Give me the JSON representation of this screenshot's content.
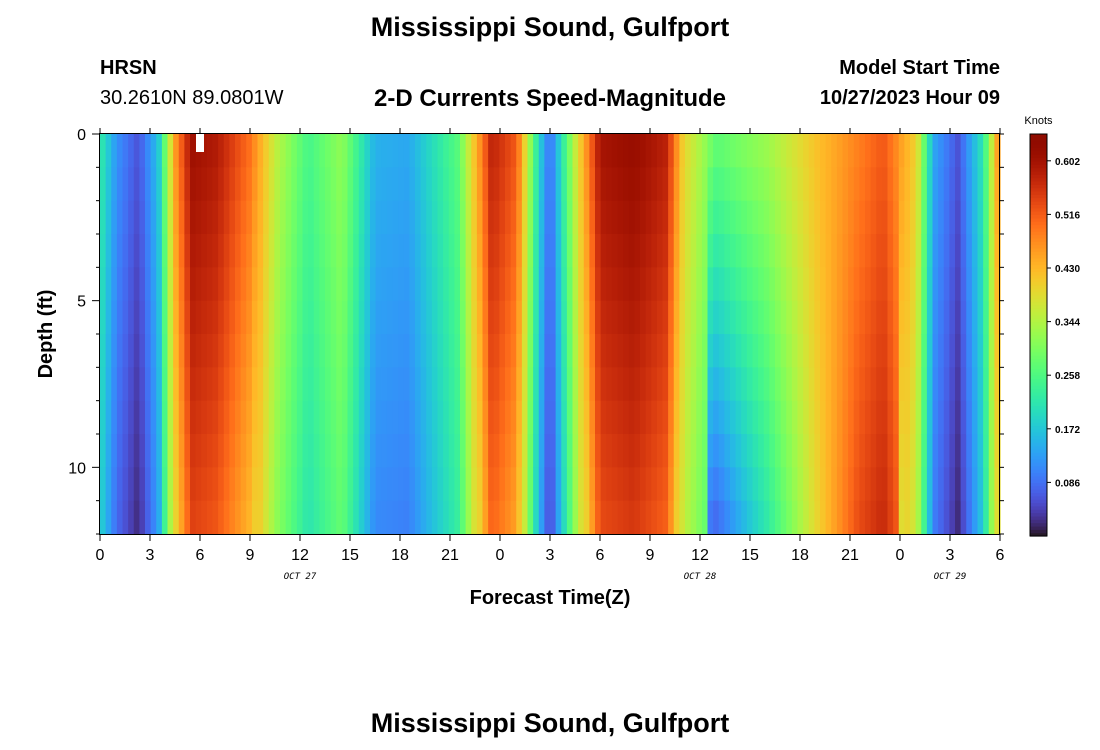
{
  "chart_data": {
    "type": "heatmap",
    "title": "Mississippi Sound, Gulfport",
    "subtitle": "2-D Currents Speed-Magnitude",
    "station": {
      "id": "HRSN",
      "coords": "30.2610N  89.0801W"
    },
    "model_start": {
      "label": "Model Start Time",
      "value": "10/27/2023 Hour 09"
    },
    "xlabel": "Forecast Time(Z)",
    "ylabel": "Depth (ft)",
    "x_tick_labels": [
      "0",
      "3",
      "6",
      "9",
      "12",
      "15",
      "18",
      "21",
      "0",
      "3",
      "6",
      "9",
      "12",
      "15",
      "18",
      "21",
      "0",
      "3",
      "6"
    ],
    "y_tick_labels": [
      "0",
      "5",
      "10"
    ],
    "y_tick_values": [
      0,
      5,
      10
    ],
    "ylim": [
      0,
      12
    ],
    "date_labels": [
      {
        "text": "OCT 27",
        "hour": 12
      },
      {
        "text": "OCT 28",
        "hour": 36
      },
      {
        "text": "OCT 29",
        "hour": 51
      }
    ],
    "colorbar": {
      "label": "Knots",
      "tick_values": [
        0.086,
        0.172,
        0.258,
        0.344,
        0.43,
        0.516,
        0.602
      ],
      "tick_labels": [
        "0.086",
        "0.172",
        "0.258",
        "0.344",
        "0.430",
        "0.516",
        "0.602"
      ],
      "range": [
        0.0,
        0.645
      ],
      "colormap": "turbo"
    },
    "x_range_hours": [
      0,
      54
    ],
    "surface_speed_knots": [
      {
        "hour": 0.0,
        "speed": 0.23
      },
      {
        "hour": 1.0,
        "speed": 0.12
      },
      {
        "hour": 2.3,
        "speed": 0.06
      },
      {
        "hour": 3.5,
        "speed": 0.17
      },
      {
        "hour": 4.5,
        "speed": 0.46
      },
      {
        "hour": 5.5,
        "speed": 0.61
      },
      {
        "hour": 7.0,
        "speed": 0.59
      },
      {
        "hour": 9.0,
        "speed": 0.5
      },
      {
        "hour": 10.5,
        "speed": 0.36
      },
      {
        "hour": 12.5,
        "speed": 0.25
      },
      {
        "hour": 14.5,
        "speed": 0.32
      },
      {
        "hour": 16.5,
        "speed": 0.15
      },
      {
        "hour": 18.5,
        "speed": 0.14
      },
      {
        "hour": 21.5,
        "speed": 0.27
      },
      {
        "hour": 23.5,
        "speed": 0.58
      },
      {
        "hour": 25.0,
        "speed": 0.52
      },
      {
        "hour": 26.3,
        "speed": 0.2
      },
      {
        "hour": 27.0,
        "speed": 0.08
      },
      {
        "hour": 28.5,
        "speed": 0.36
      },
      {
        "hour": 30.0,
        "speed": 0.6
      },
      {
        "hour": 32.0,
        "speed": 0.62
      },
      {
        "hour": 34.0,
        "speed": 0.58
      },
      {
        "hour": 35.0,
        "speed": 0.4
      },
      {
        "hour": 37.0,
        "speed": 0.28
      },
      {
        "hour": 40.0,
        "speed": 0.33
      },
      {
        "hour": 43.0,
        "speed": 0.42
      },
      {
        "hour": 47.0,
        "speed": 0.52
      },
      {
        "hour": 49.0,
        "speed": 0.4
      },
      {
        "hour": 50.0,
        "speed": 0.14
      },
      {
        "hour": 51.5,
        "speed": 0.06
      },
      {
        "hour": 53.0,
        "speed": 0.22
      },
      {
        "hour": 54.0,
        "speed": 0.5
      }
    ]
  },
  "footer_title": "Mississippi Sound, Gulfport"
}
